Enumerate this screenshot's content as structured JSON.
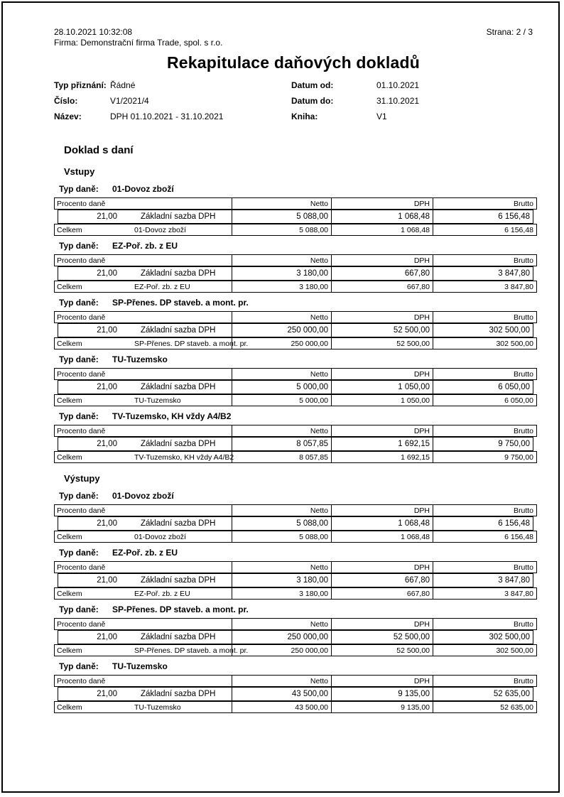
{
  "page": {
    "printed_at": "28.10.2021  10:32:08",
    "company": "Firma: Demonstrační firma Trade, spol. s r.o.",
    "page_label": "Strana: 2 / 3",
    "title": "Rekapitulace daňových dokladů"
  },
  "meta": {
    "left": [
      {
        "label": "Typ přiznání:",
        "value": "Řádné"
      },
      {
        "label": "Číslo:",
        "value": "V1/2021/4"
      },
      {
        "label": "Název:",
        "value": "DPH 01.10.2021 - 31.10.2021"
      }
    ],
    "right": [
      {
        "label": "Datum od:",
        "value": "01.10.2021"
      },
      {
        "label": "Datum do:",
        "value": "31.10.2021"
      },
      {
        "label": "Kniha:",
        "value": "V1"
      }
    ]
  },
  "section_title": "Doklad s daní",
  "labels": {
    "typ_dane": "Typ daně:",
    "celkem": "Celkem",
    "procento_dane": "Procento daně",
    "netto": "Netto",
    "dph": "DPH",
    "brutto": "Brutto"
  },
  "groups": [
    {
      "heading": "Vstupy",
      "tables": [
        {
          "tax_type": "01-Dovoz zboží",
          "rows": [
            {
              "percent": "21,00",
              "rate_name": "Základní sazba DPH",
              "netto": "5 088,00",
              "dph": "1 068,48",
              "brutto": "6 156,48"
            }
          ],
          "total": {
            "name": "01-Dovoz zboží",
            "netto": "5 088,00",
            "dph": "1 068,48",
            "brutto": "6 156,48"
          }
        },
        {
          "tax_type": "EZ-Poř. zb. z EU",
          "rows": [
            {
              "percent": "21,00",
              "rate_name": "Základní sazba DPH",
              "netto": "3 180,00",
              "dph": "667,80",
              "brutto": "3 847,80"
            }
          ],
          "total": {
            "name": "EZ-Poř. zb. z EU",
            "netto": "3 180,00",
            "dph": "667,80",
            "brutto": "3 847,80"
          }
        },
        {
          "tax_type": "SP-Přenes. DP staveb. a mont. pr.",
          "rows": [
            {
              "percent": "21,00",
              "rate_name": "Základní sazba DPH",
              "netto": "250 000,00",
              "dph": "52 500,00",
              "brutto": "302 500,00"
            }
          ],
          "total": {
            "name": "SP-Přenes. DP staveb. a mont. pr.",
            "netto": "250 000,00",
            "dph": "52 500,00",
            "brutto": "302 500,00"
          }
        },
        {
          "tax_type": "TU-Tuzemsko",
          "rows": [
            {
              "percent": "21,00",
              "rate_name": "Základní sazba DPH",
              "netto": "5 000,00",
              "dph": "1 050,00",
              "brutto": "6 050,00"
            }
          ],
          "total": {
            "name": "TU-Tuzemsko",
            "netto": "5 000,00",
            "dph": "1 050,00",
            "brutto": "6 050,00"
          }
        },
        {
          "tax_type": "TV-Tuzemsko, KH vždy A4/B2",
          "rows": [
            {
              "percent": "21,00",
              "rate_name": "Základní sazba DPH",
              "netto": "8 057,85",
              "dph": "1 692,15",
              "brutto": "9 750,00"
            }
          ],
          "total": {
            "name": "TV-Tuzemsko, KH vždy A4/B2",
            "netto": "8 057,85",
            "dph": "1 692,15",
            "brutto": "9 750,00"
          }
        }
      ]
    },
    {
      "heading": "Výstupy",
      "tables": [
        {
          "tax_type": "01-Dovoz zboží",
          "rows": [
            {
              "percent": "21,00",
              "rate_name": "Základní sazba DPH",
              "netto": "5 088,00",
              "dph": "1 068,48",
              "brutto": "6 156,48"
            }
          ],
          "total": {
            "name": "01-Dovoz zboží",
            "netto": "5 088,00",
            "dph": "1 068,48",
            "brutto": "6 156,48"
          }
        },
        {
          "tax_type": "EZ-Poř. zb. z EU",
          "rows": [
            {
              "percent": "21,00",
              "rate_name": "Základní sazba DPH",
              "netto": "3 180,00",
              "dph": "667,80",
              "brutto": "3 847,80"
            }
          ],
          "total": {
            "name": "EZ-Poř. zb. z EU",
            "netto": "3 180,00",
            "dph": "667,80",
            "brutto": "3 847,80"
          }
        },
        {
          "tax_type": "SP-Přenes. DP staveb. a mont. pr.",
          "rows": [
            {
              "percent": "21,00",
              "rate_name": "Základní sazba DPH",
              "netto": "250 000,00",
              "dph": "52 500,00",
              "brutto": "302 500,00"
            }
          ],
          "total": {
            "name": "SP-Přenes. DP staveb. a mont. pr.",
            "netto": "250 000,00",
            "dph": "52 500,00",
            "brutto": "302 500,00"
          }
        },
        {
          "tax_type": "TU-Tuzemsko",
          "rows": [
            {
              "percent": "21,00",
              "rate_name": "Základní sazba DPH",
              "netto": "43 500,00",
              "dph": "9 135,00",
              "brutto": "52 635,00"
            }
          ],
          "total": {
            "name": "TU-Tuzemsko",
            "netto": "43 500,00",
            "dph": "9 135,00",
            "brutto": "52 635,00"
          }
        }
      ]
    }
  ]
}
